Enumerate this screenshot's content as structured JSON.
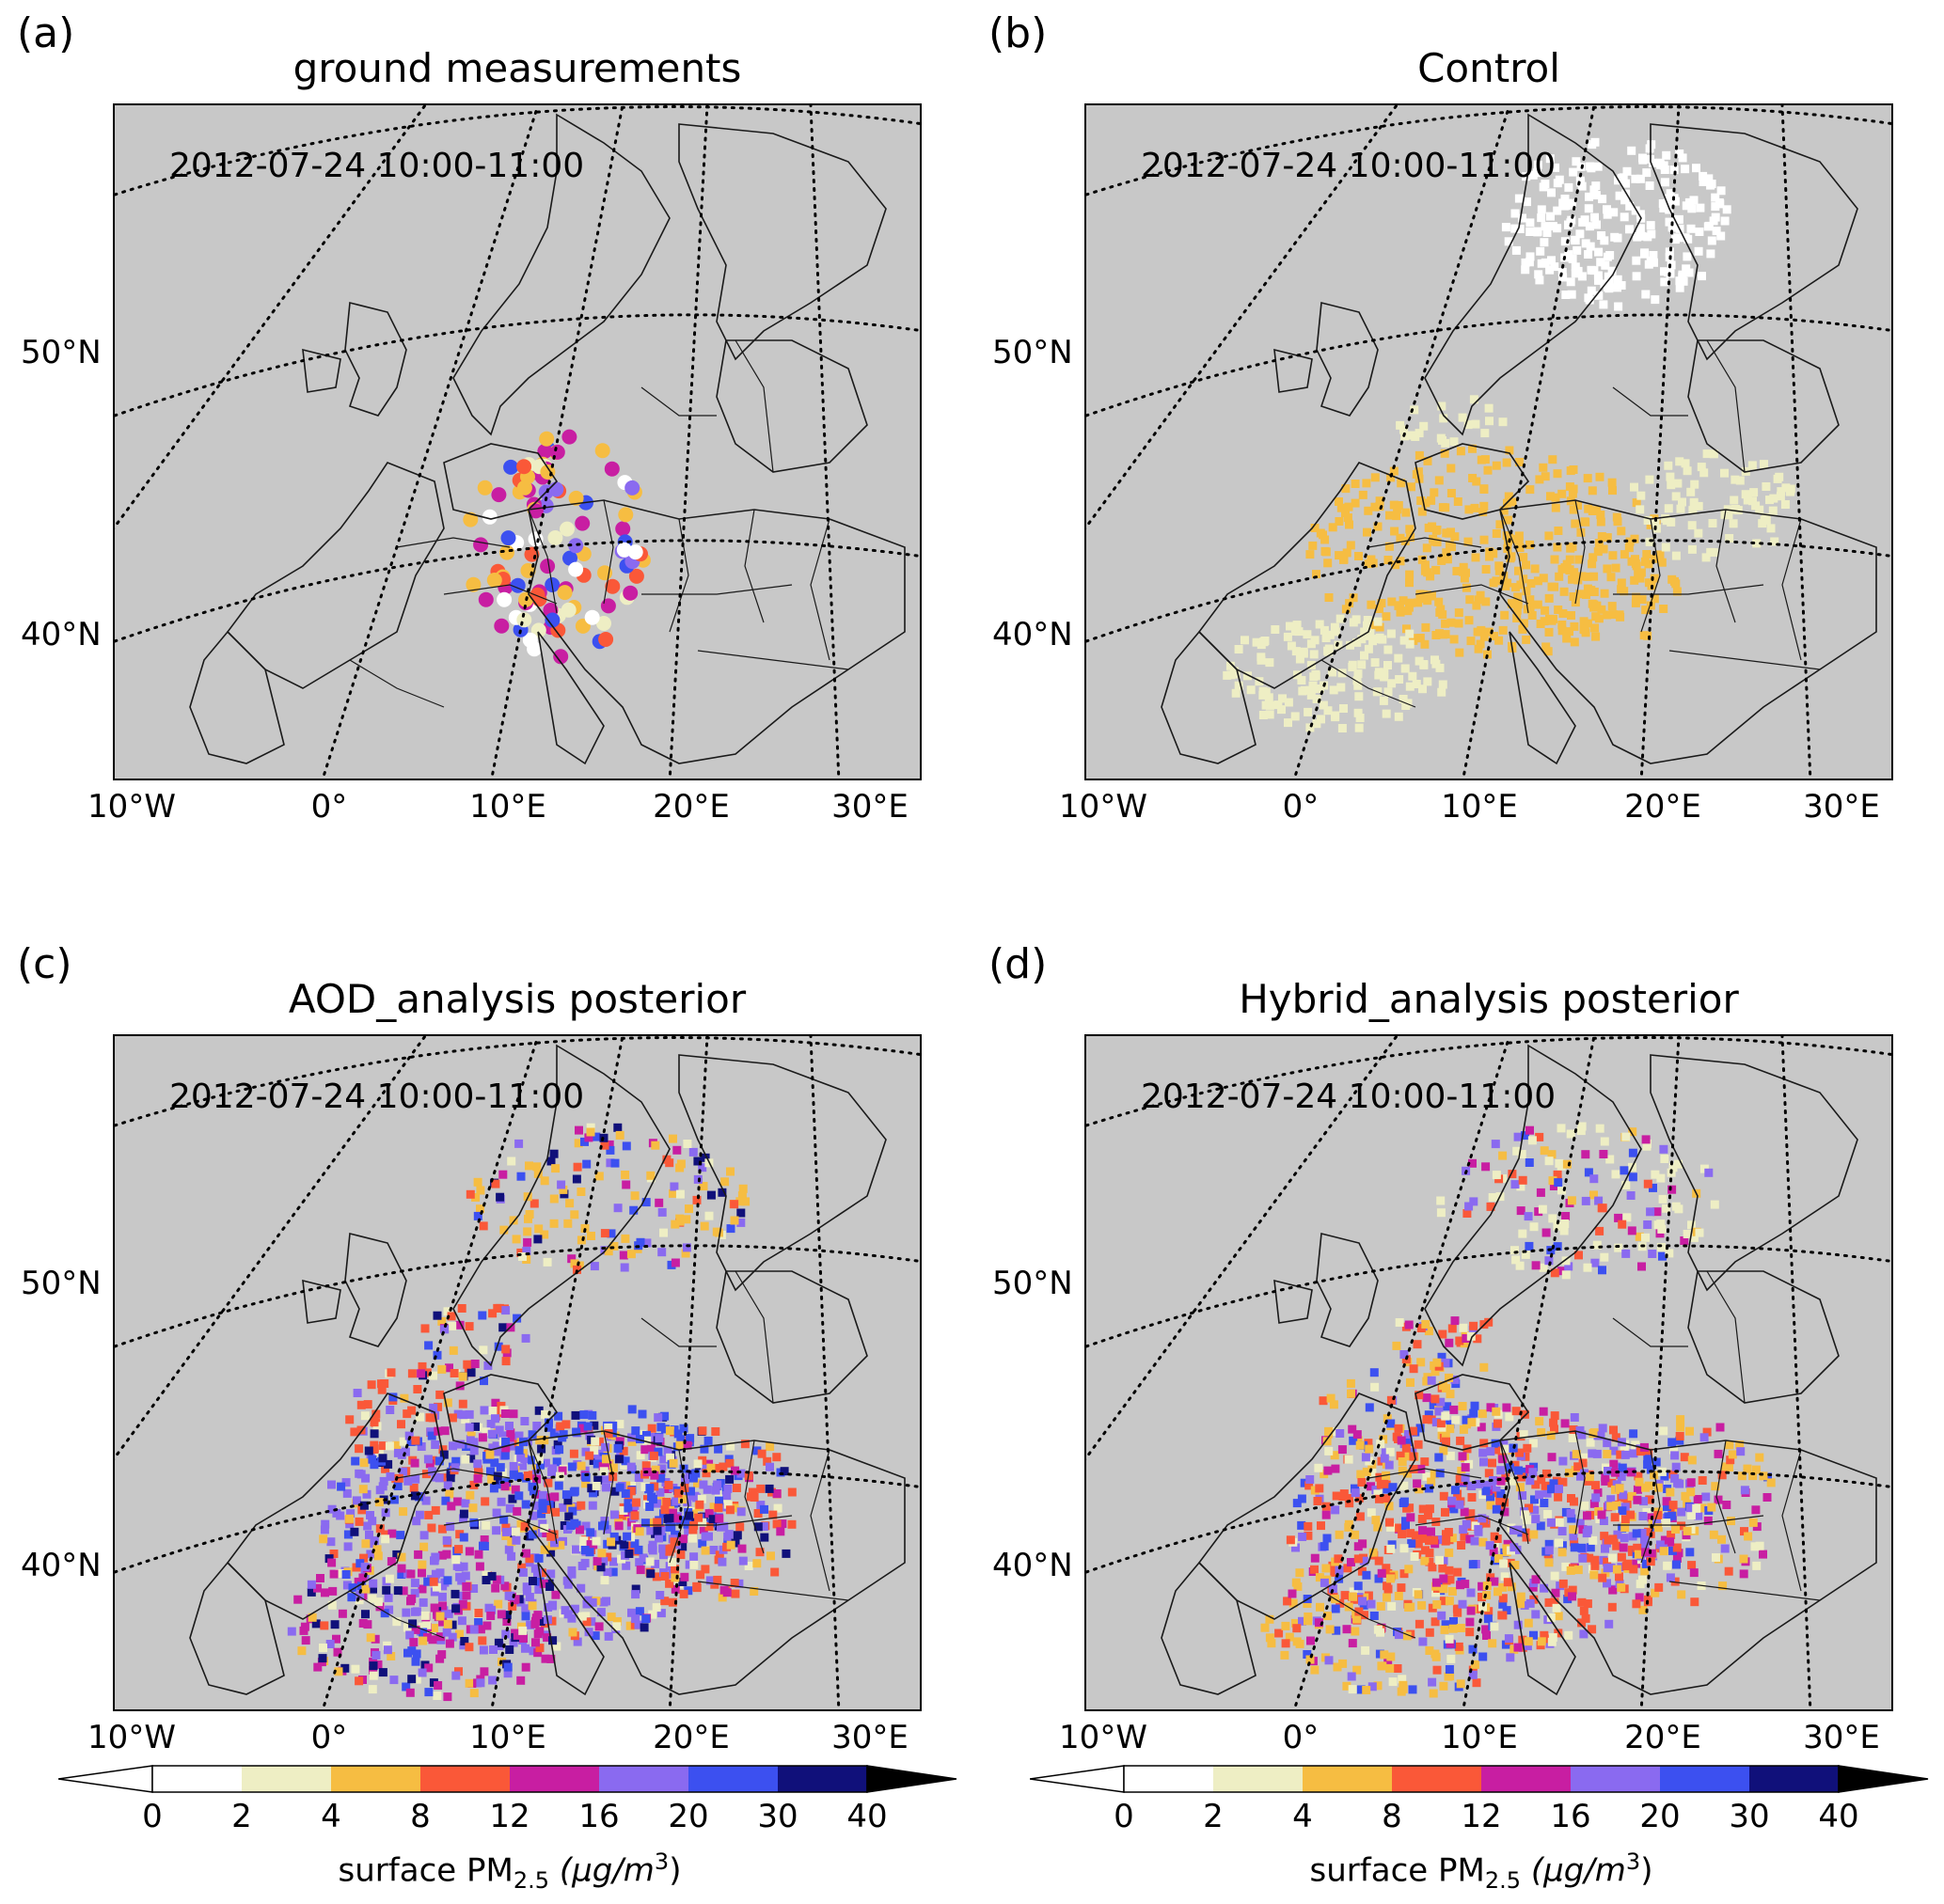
{
  "panels": [
    {
      "letter": "(a)",
      "title": "ground measurements",
      "timestamp": "2012-07-24 10:00-11:00",
      "field": "stations"
    },
    {
      "letter": "(b)",
      "title": "Control",
      "timestamp": "2012-07-24 10:00-11:00",
      "field": "control"
    },
    {
      "letter": "(c)",
      "title": "AOD_analysis posterior",
      "timestamp": "2012-07-24 10:00-11:00",
      "field": "aod"
    },
    {
      "letter": "(d)",
      "title": "Hybrid_analysis posterior",
      "timestamp": "2012-07-24 10:00-11:00",
      "field": "hybrid"
    }
  ],
  "axes": {
    "lon_labels": [
      "10°W",
      "0°",
      "10°E",
      "20°E",
      "30°E"
    ],
    "lat_labels": [
      "50°N",
      "40°N"
    ]
  },
  "colorbar": {
    "ticks": [
      "0",
      "2",
      "4",
      "8",
      "12",
      "16",
      "20",
      "30",
      "40"
    ],
    "label_prefix": "surface PM",
    "label_sub": "2.5",
    "label_units": "(μg/m",
    "label_sup": "3",
    "label_close": ")",
    "colors": [
      "#ffffff",
      "#eeeec4",
      "#f6bd42",
      "#fa5838",
      "#c81ea2",
      "#8a6af0",
      "#3c50f0",
      "#10107a"
    ],
    "overflow_color": "#000000",
    "extend": "both"
  },
  "colors": {
    "ocean_land": "#c8c8c8",
    "coast": "#1a1a1a",
    "grid": "#000000"
  }
}
